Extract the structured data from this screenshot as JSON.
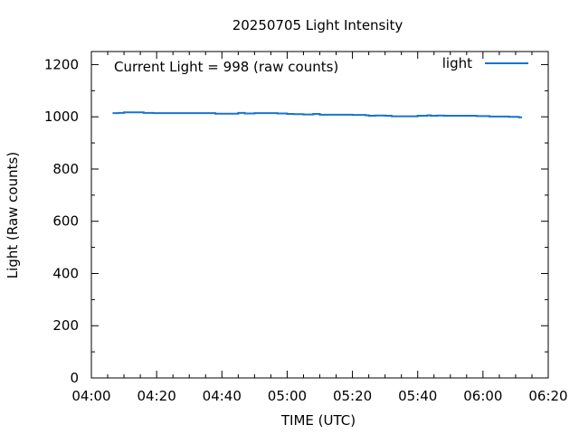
{
  "chart_data": {
    "type": "line",
    "title": "20250705 Light Intensity",
    "xlabel": "TIME (UTC)",
    "ylabel": "Light (Raw counts)",
    "annotation": "Current Light = 998 (raw counts)",
    "x_unit": "minutes after 04:00 UTC",
    "xlim": [
      0,
      140
    ],
    "ylim": [
      0,
      1250
    ],
    "x_ticks": [
      {
        "value": 0,
        "label": "04:00"
      },
      {
        "value": 20,
        "label": "04:20"
      },
      {
        "value": 40,
        "label": "04:40"
      },
      {
        "value": 60,
        "label": "05:00"
      },
      {
        "value": 80,
        "label": "05:20"
      },
      {
        "value": 100,
        "label": "05:40"
      },
      {
        "value": 120,
        "label": "06:00"
      },
      {
        "value": 140,
        "label": "06:20"
      }
    ],
    "y_ticks": [
      {
        "value": 0,
        "label": "0"
      },
      {
        "value": 200,
        "label": "200"
      },
      {
        "value": 400,
        "label": "400"
      },
      {
        "value": 600,
        "label": "600"
      },
      {
        "value": 800,
        "label": "800"
      },
      {
        "value": 1000,
        "label": "1000"
      },
      {
        "value": 1200,
        "label": "1200"
      }
    ],
    "legend": {
      "position": "top-right"
    },
    "grid": false,
    "series": [
      {
        "name": "light",
        "color": "#1874cd",
        "x": [
          6.5,
          8.5,
          10,
          12,
          14,
          16,
          19,
          22,
          27,
          32,
          38,
          40,
          43,
          45,
          47,
          48,
          50,
          53,
          57,
          60,
          62,
          65,
          68,
          70,
          74,
          78,
          80,
          84,
          85,
          87,
          90,
          92,
          94,
          97,
          100,
          102,
          103,
          104,
          106,
          108,
          112,
          118,
          122,
          126,
          128,
          131,
          132
        ],
        "y": [
          1014,
          1015,
          1017,
          1017,
          1017,
          1015,
          1014,
          1014,
          1014,
          1014,
          1012,
          1012,
          1012,
          1015,
          1013,
          1013,
          1014,
          1014,
          1013,
          1011,
          1010,
          1009,
          1011,
          1008,
          1008,
          1008,
          1007,
          1006,
          1004,
          1005,
          1004,
          1002,
          1002,
          1002,
          1004,
          1004,
          1006,
          1004,
          1005,
          1004,
          1004,
          1003,
          1001,
          1001,
          1000,
          998,
          998
        ]
      }
    ]
  }
}
